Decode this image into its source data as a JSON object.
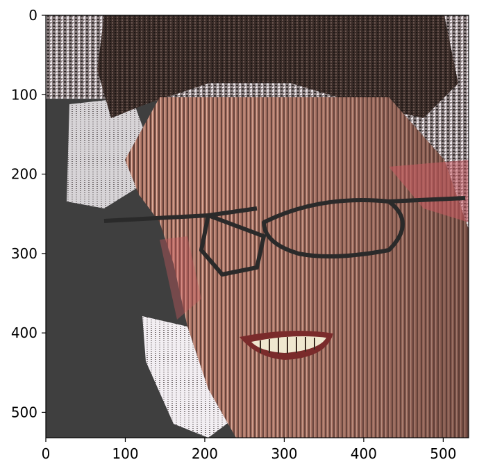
{
  "figure": {
    "description_kind": "image-plot",
    "image_content": "pixel-scrambled portrait of a smiling man with glasses",
    "axes": {
      "x": {
        "ticks": [
          "0",
          "100",
          "200",
          "300",
          "400",
          "500"
        ],
        "range": [
          0,
          532
        ]
      },
      "y": {
        "ticks": [
          "0",
          "100",
          "200",
          "300",
          "400",
          "500"
        ],
        "range": [
          0,
          532
        ],
        "inverted": true
      }
    }
  },
  "colors": {
    "background_panel": "#3f3f3f",
    "skin": "#b07868",
    "skin_light": "#d6a394",
    "hair": "#3a2c28",
    "glasses": "#2a2a2a",
    "white_streaks": "#f2eef2",
    "accent_red": "#c85a60",
    "teeth": "#efe7cf"
  }
}
